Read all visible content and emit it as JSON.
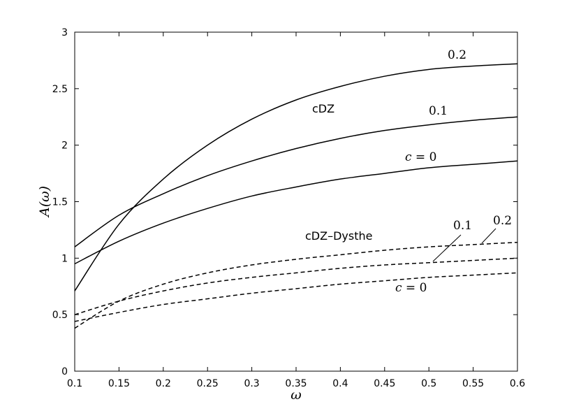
{
  "chart_data": {
    "type": "line",
    "xlabel": "ω",
    "ylabel": "A(ω)",
    "xlim": [
      0.1,
      0.6
    ],
    "ylim": [
      0,
      3
    ],
    "xticks": [
      "0.1",
      "0.15",
      "0.2",
      "0.25",
      "0.3",
      "0.35",
      "0.4",
      "0.45",
      "0.5",
      "0.55",
      "0.6"
    ],
    "yticks": [
      "0",
      "0.5",
      "1",
      "1.5",
      "2",
      "2.5",
      "3"
    ],
    "grid": false,
    "x": [
      0.1,
      0.15,
      0.2,
      0.25,
      0.3,
      0.35,
      0.4,
      0.45,
      0.5,
      0.55,
      0.6
    ],
    "series": [
      {
        "group": "cDZ",
        "c": "0",
        "style": "solid",
        "values": [
          0.95,
          1.15,
          1.31,
          1.44,
          1.55,
          1.63,
          1.7,
          1.75,
          1.8,
          1.83,
          1.86
        ]
      },
      {
        "group": "cDZ",
        "c": "0.1",
        "style": "solid",
        "values": [
          1.1,
          1.38,
          1.57,
          1.73,
          1.86,
          1.97,
          2.06,
          2.13,
          2.18,
          2.22,
          2.25
        ]
      },
      {
        "group": "cDZ",
        "c": "0.2",
        "style": "solid",
        "values": [
          0.71,
          1.3,
          1.7,
          2.0,
          2.23,
          2.4,
          2.52,
          2.61,
          2.67,
          2.7,
          2.72
        ]
      },
      {
        "group": "cDZ–Dysthe",
        "c": "0",
        "style": "dashed",
        "values": [
          0.44,
          0.52,
          0.59,
          0.64,
          0.69,
          0.73,
          0.77,
          0.8,
          0.83,
          0.85,
          0.87
        ]
      },
      {
        "group": "cDZ–Dysthe",
        "c": "0.1",
        "style": "dashed",
        "values": [
          0.5,
          0.62,
          0.71,
          0.78,
          0.83,
          0.87,
          0.91,
          0.94,
          0.96,
          0.98,
          1.0
        ]
      },
      {
        "group": "cDZ–Dysthe",
        "c": "0.2",
        "style": "dashed",
        "values": [
          0.38,
          0.62,
          0.77,
          0.87,
          0.94,
          0.99,
          1.03,
          1.07,
          1.1,
          1.12,
          1.14
        ]
      }
    ],
    "annotations": {
      "cdz_label": "cDZ",
      "cdz_c02": "0.2",
      "cdz_c01": "0.1",
      "cdz_c0_var": "c",
      "cdz_c0_rest": " = 0",
      "dysthe_label": "cDZ–Dysthe",
      "dysthe_c01": "0.1",
      "dysthe_c02": "0.2",
      "dysthe_c0_var": "c",
      "dysthe_c0_rest": " = 0"
    }
  }
}
